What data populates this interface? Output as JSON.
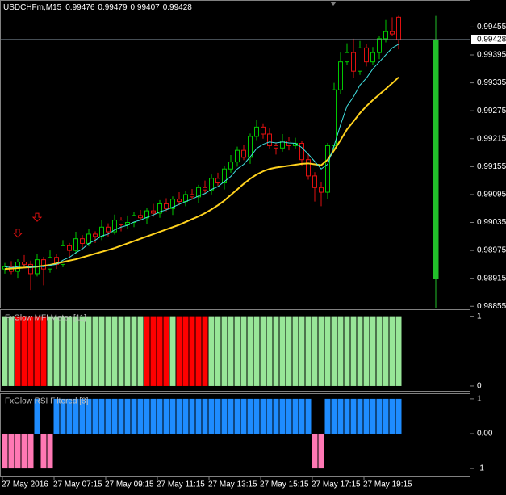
{
  "chart_data": [
    {
      "type": "candlestick",
      "title": "USDCHFm,M15",
      "x": [
        "27 May 2016",
        null,
        null,
        null,
        null,
        null,
        null,
        null,
        "27 May 07:15",
        null,
        null,
        null,
        null,
        null,
        null,
        null,
        "27 May 09:15",
        null,
        null,
        null,
        null,
        null,
        null,
        null,
        "27 May 11:15",
        null,
        null,
        null,
        null,
        null,
        null,
        null,
        "27 May 13:15",
        null,
        null,
        null,
        null,
        null,
        null,
        null,
        "27 May 15:15",
        null,
        null,
        null,
        null,
        null,
        null,
        null,
        "27 May 17:15",
        null,
        null,
        null,
        null,
        null,
        null,
        null,
        "27 May 19:15",
        null,
        null,
        null,
        null,
        null
      ],
      "candles": [
        [
          0.98935,
          0.98948,
          0.98925,
          0.9894
        ],
        [
          0.9894,
          0.98952,
          0.98924,
          0.9893
        ],
        [
          0.9893,
          0.98956,
          0.98916,
          0.9895
        ],
        [
          0.9895,
          0.98965,
          0.98937,
          0.98945
        ],
        [
          0.98945,
          0.98953,
          0.9889,
          0.98925
        ],
        [
          0.98925,
          0.98967,
          0.98919,
          0.98955
        ],
        [
          0.98955,
          0.98961,
          0.989,
          0.98935
        ],
        [
          0.98935,
          0.98975,
          0.98927,
          0.9896
        ],
        [
          0.9896,
          0.98968,
          0.98935,
          0.98945
        ],
        [
          0.98945,
          0.98997,
          0.98939,
          0.98985
        ],
        [
          0.98985,
          0.98991,
          0.98961,
          0.98975
        ],
        [
          0.98975,
          0.99015,
          0.98967,
          0.99
        ],
        [
          0.99,
          0.99008,
          0.9898,
          0.9899
        ],
        [
          0.9899,
          0.99022,
          0.98984,
          0.9901
        ],
        [
          0.9901,
          0.99016,
          0.98991,
          0.99005
        ],
        [
          0.99005,
          0.9904,
          0.98997,
          0.99025
        ],
        [
          0.99025,
          0.99033,
          0.99005,
          0.99015
        ],
        [
          0.99015,
          0.99052,
          0.99009,
          0.9904
        ],
        [
          0.9904,
          0.99046,
          0.99016,
          0.9903
        ],
        [
          0.9903,
          0.9905,
          0.99022,
          0.99035
        ],
        [
          0.99035,
          0.99058,
          0.99025,
          0.9905
        ],
        [
          0.9905,
          0.99062,
          0.99039,
          0.99045
        ],
        [
          0.99045,
          0.99066,
          0.99031,
          0.9906
        ],
        [
          0.9906,
          0.99075,
          0.99047,
          0.99055
        ],
        [
          0.99055,
          0.99083,
          0.99045,
          0.99075
        ],
        [
          0.99075,
          0.99087,
          0.99059,
          0.99065
        ],
        [
          0.99065,
          0.99091,
          0.99051,
          0.99085
        ],
        [
          0.99085,
          0.991,
          0.99072,
          0.9908
        ],
        [
          0.9908,
          0.99103,
          0.9907,
          0.99095
        ],
        [
          0.99095,
          0.99107,
          0.99084,
          0.9909
        ],
        [
          0.9909,
          0.99116,
          0.99076,
          0.9911
        ],
        [
          0.9911,
          0.99125,
          0.99097,
          0.99105
        ],
        [
          0.99105,
          0.99138,
          0.99095,
          0.9913
        ],
        [
          0.9913,
          0.99142,
          0.99114,
          0.9912
        ],
        [
          0.9912,
          0.99156,
          0.99106,
          0.9915
        ],
        [
          0.9915,
          0.9918,
          0.99142,
          0.99165
        ],
        [
          0.99165,
          0.99198,
          0.99155,
          0.9919
        ],
        [
          0.9919,
          0.99202,
          0.99169,
          0.99175
        ],
        [
          0.99175,
          0.99226,
          0.99161,
          0.9922
        ],
        [
          0.9922,
          0.99255,
          0.99212,
          0.9924
        ],
        [
          0.9924,
          0.99248,
          0.99215,
          0.99225
        ],
        [
          0.99225,
          0.99237,
          0.99194,
          0.992
        ],
        [
          0.992,
          0.99206,
          0.99181,
          0.99195
        ],
        [
          0.99195,
          0.99225,
          0.99187,
          0.9921
        ],
        [
          0.9921,
          0.99218,
          0.9919,
          0.992
        ],
        [
          0.992,
          0.99217,
          0.99194,
          0.99205
        ],
        [
          0.99205,
          0.99211,
          0.99156,
          0.9917
        ],
        [
          0.9917,
          0.99185,
          0.99127,
          0.99135
        ],
        [
          0.99135,
          0.99143,
          0.9908,
          0.9911
        ],
        [
          0.9911,
          0.99122,
          0.9907,
          0.991
        ],
        [
          0.991,
          0.99206,
          0.99086,
          0.992
        ],
        [
          0.992,
          0.99335,
          0.99192,
          0.9932
        ],
        [
          0.9932,
          0.994,
          0.9931,
          0.9938
        ],
        [
          0.9938,
          0.9942,
          0.99374,
          0.994
        ],
        [
          0.994,
          0.9943,
          0.99346,
          0.9936
        ],
        [
          0.9936,
          0.99425,
          0.99352,
          0.9941
        ],
        [
          0.9941,
          0.99418,
          0.9937,
          0.9938
        ],
        [
          0.9938,
          0.99412,
          0.99374,
          0.994
        ],
        [
          0.994,
          0.99436,
          0.99386,
          0.9943
        ],
        [
          0.9943,
          0.9947,
          0.99422,
          0.99445
        ],
        [
          0.99445,
          0.99476,
          0.99435,
          0.9944
        ],
        [
          0.99476,
          0.99479,
          0.99407,
          0.99428
        ]
      ],
      "colors": {
        "up": "#00c800",
        "down": "#e01010"
      },
      "ma_fast": {
        "color": "#40e0e0",
        "values": [
          0.9894,
          0.98938,
          0.9894,
          0.98942,
          0.98938,
          0.98941,
          0.9894,
          0.98943,
          0.98945,
          0.98954,
          0.9896,
          0.9897,
          0.98978,
          0.9899,
          0.98997,
          0.99006,
          0.9901,
          0.99019,
          0.99025,
          0.99029,
          0.99036,
          0.9904,
          0.99046,
          0.99051,
          0.99058,
          0.99062,
          0.99068,
          0.99074,
          0.9908,
          0.99085,
          0.99092,
          0.99097,
          0.99106,
          0.99112,
          0.99123,
          0.99134,
          0.9915,
          0.9916,
          0.99176,
          0.99194,
          0.99203,
          0.99208,
          0.99206,
          0.99208,
          0.99206,
          0.99205,
          0.99196,
          0.99182,
          0.99166,
          0.9915,
          0.9916,
          0.992,
          0.99245,
          0.99285,
          0.99305,
          0.9933,
          0.99345,
          0.99365,
          0.9938,
          0.99395,
          0.9941,
          0.99418
        ]
      },
      "ma_slow": {
        "color": "#ffd21e",
        "values": [
          0.98935,
          0.98936,
          0.98937,
          0.98938,
          0.98939,
          0.9894,
          0.98942,
          0.98944,
          0.98947,
          0.9895,
          0.98953,
          0.98956,
          0.9896,
          0.98964,
          0.98968,
          0.98972,
          0.98976,
          0.9898,
          0.98985,
          0.9899,
          0.98995,
          0.99,
          0.99005,
          0.9901,
          0.99015,
          0.9902,
          0.99025,
          0.9903,
          0.99036,
          0.99042,
          0.99048,
          0.99055,
          0.99063,
          0.99072,
          0.99082,
          0.99094,
          0.99106,
          0.99118,
          0.99129,
          0.99138,
          0.99145,
          0.9915,
          0.99153,
          0.99155,
          0.99157,
          0.99159,
          0.99161,
          0.99162,
          0.9916,
          0.99158,
          0.9917,
          0.9919,
          0.99212,
          0.99235,
          0.99252,
          0.9927,
          0.99285,
          0.99298,
          0.9931,
          0.99322,
          0.99334,
          0.99347
        ]
      },
      "sell_arrows": {
        "color": "#e01010",
        "values": [
          null,
          null,
          0.99012,
          null,
          null,
          0.99046,
          null,
          null,
          null,
          null,
          null,
          null,
          null,
          null,
          null,
          null,
          null,
          null,
          null,
          null,
          null,
          null,
          null,
          null,
          null,
          null,
          null,
          null,
          null,
          null,
          null,
          null,
          null,
          null,
          null,
          null,
          null,
          null,
          null,
          null,
          null,
          null,
          null,
          null,
          null,
          null,
          null,
          null,
          null,
          null,
          null,
          null,
          null,
          null,
          null,
          null,
          null,
          null,
          null,
          null,
          null,
          null
        ]
      },
      "day_candle": {
        "color": "#22c02a",
        "ohlc": [
          0.98913,
          0.99479,
          0.98852,
          0.99428
        ]
      },
      "ylim": [
        0.98852,
        0.99513
      ],
      "yticks": [
        0.99455,
        0.99395,
        0.99335,
        0.99275,
        0.99215,
        0.99155,
        0.99095,
        0.99035,
        0.98975,
        0.98915,
        0.98855
      ]
    },
    {
      "type": "histogram",
      "title": "FxGlow MFI Meter [11]",
      "values": [
        1,
        1,
        1,
        1,
        1,
        1,
        1,
        1,
        1,
        1,
        1,
        1,
        1,
        1,
        1,
        1,
        1,
        1,
        1,
        1,
        1,
        1,
        1,
        1,
        1,
        1,
        1,
        1,
        1,
        1,
        1,
        1,
        1,
        1,
        1,
        1,
        1,
        1,
        1,
        1,
        1,
        1,
        1,
        1,
        1,
        1,
        1,
        1,
        1,
        1,
        1,
        1,
        1,
        1,
        1,
        1,
        1,
        1,
        1,
        1,
        1,
        1
      ],
      "colors": [
        "#98e698",
        "#98e698",
        "#ff0000",
        "#ff0000",
        "#ff0000",
        "#ff0000",
        "#ff0000",
        "#98e698",
        "#98e698",
        "#98e698",
        "#98e698",
        "#98e698",
        "#98e698",
        "#98e698",
        "#98e698",
        "#98e698",
        "#98e698",
        "#98e698",
        "#98e698",
        "#98e698",
        "#98e698",
        "#98e698",
        "#ff0000",
        "#ff0000",
        "#ff0000",
        "#ff0000",
        "#98e698",
        "#ff0000",
        "#ff0000",
        "#ff0000",
        "#ff0000",
        "#ff0000",
        "#98e698",
        "#98e698",
        "#98e698",
        "#98e698",
        "#98e698",
        "#98e698",
        "#98e698",
        "#98e698",
        "#98e698",
        "#98e698",
        "#98e698",
        "#98e698",
        "#98e698",
        "#98e698",
        "#98e698",
        "#98e698",
        "#98e698",
        "#98e698",
        "#98e698",
        "#98e698",
        "#98e698",
        "#98e698",
        "#98e698",
        "#98e698",
        "#98e698",
        "#98e698",
        "#98e698",
        "#98e698",
        "#98e698",
        "#98e698"
      ],
      "ylim": [
        -0.07,
        1.1
      ],
      "yticks": [
        0,
        1
      ]
    },
    {
      "type": "histogram",
      "title": "FxGlow RSI Filtered [8]",
      "values": [
        -1,
        -1,
        -1,
        -1,
        -1,
        1,
        -1,
        -1,
        1,
        1,
        1,
        1,
        1,
        1,
        1,
        1,
        1,
        1,
        1,
        1,
        1,
        1,
        1,
        1,
        1,
        1,
        1,
        1,
        1,
        1,
        1,
        1,
        1,
        1,
        1,
        1,
        1,
        1,
        1,
        1,
        1,
        1,
        1,
        1,
        1,
        1,
        1,
        1,
        -1,
        -1,
        1,
        1,
        1,
        1,
        1,
        1,
        1,
        1,
        1,
        1,
        1,
        1
      ],
      "up_color": "#1e8cff",
      "down_color": "#ff78b4",
      "ylim": [
        -1.23,
        1.16
      ],
      "yticks": [
        -1,
        {
          "value": 0,
          "label": "0.00"
        },
        1
      ]
    }
  ]
}
